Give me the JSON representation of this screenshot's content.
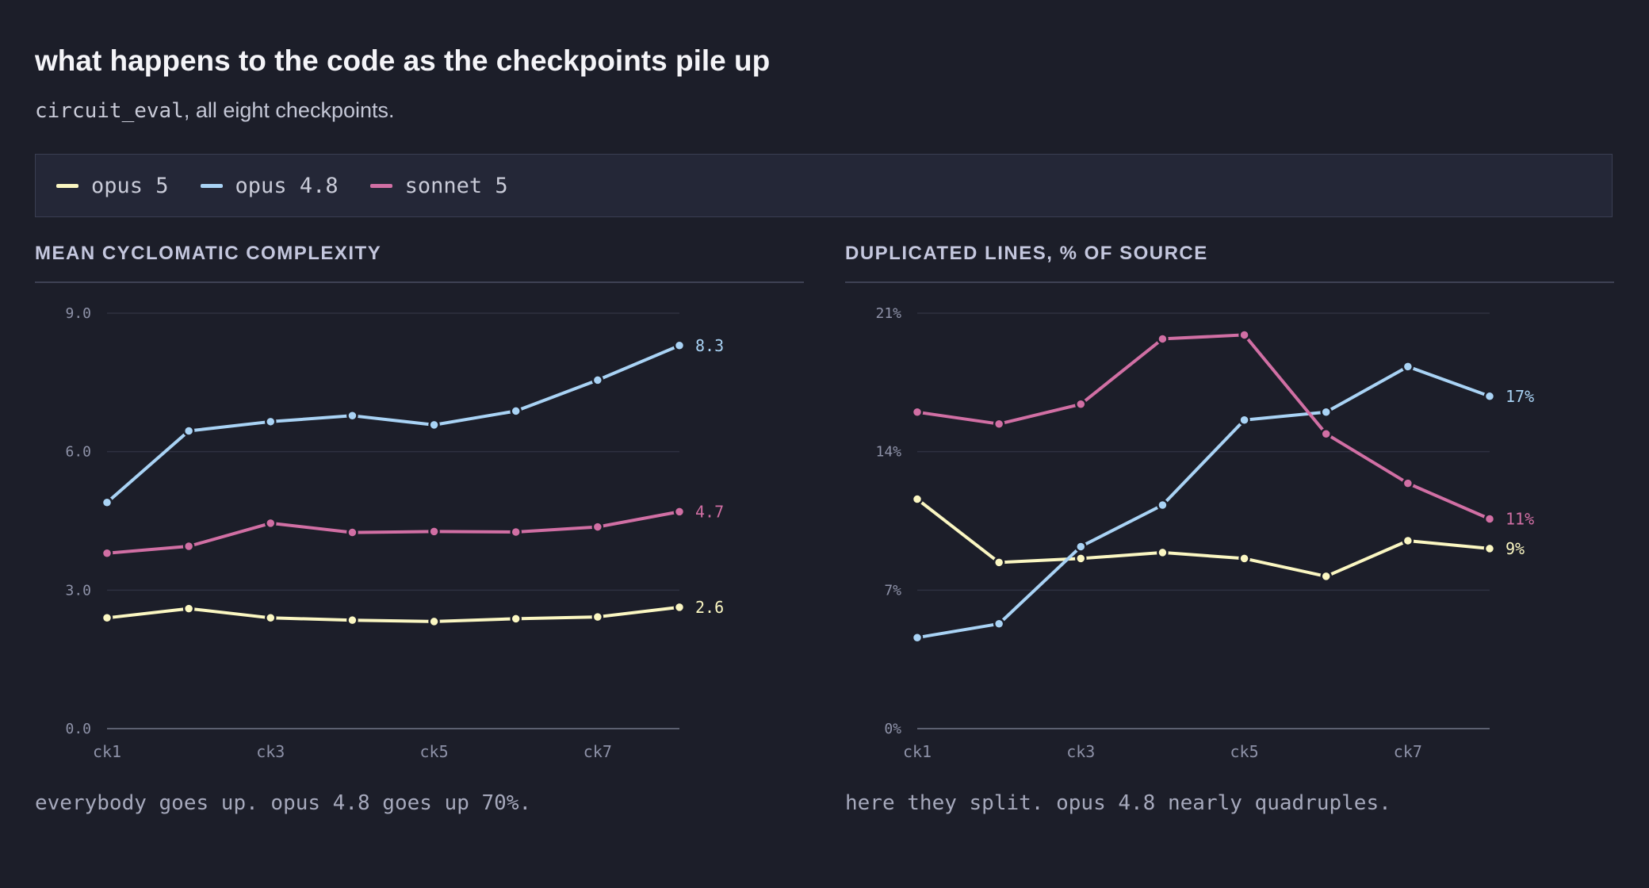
{
  "header": {
    "title": "what happens to the code as the checkpoints pile up",
    "subtitle_code": "circuit_eval",
    "subtitle_rest": ", all eight checkpoints."
  },
  "legend": [
    {
      "name": "opus 5",
      "color": "#fbf7c2"
    },
    {
      "name": "opus 4.8",
      "color": "#a9d3f5"
    },
    {
      "name": "sonnet 5",
      "color": "#d16fa4"
    }
  ],
  "colors": {
    "background": "#1c1e29",
    "grid": "#2e3140",
    "axis": "#5c6070",
    "tick_text": "#8e92a8"
  },
  "chart_data": [
    {
      "type": "line",
      "title": "MEAN CYCLOMATIC COMPLEXITY",
      "caption": "everybody goes up. opus 4.8 goes up 70%.",
      "categories": [
        "ck1",
        "ck2",
        "ck3",
        "ck4",
        "ck5",
        "ck6",
        "ck7",
        "ck8"
      ],
      "x_tick_labels": [
        "ck1",
        "",
        "ck3",
        "",
        "ck5",
        "",
        "ck7",
        ""
      ],
      "ylim": [
        0,
        9
      ],
      "y_ticks": [
        0,
        3,
        6,
        9
      ],
      "y_tick_labels": [
        "0.0",
        "3.0",
        "6.0",
        "9.0"
      ],
      "series": [
        {
          "name": "opus 5",
          "color": "#fbf7c2",
          "values": [
            2.4,
            2.6,
            2.4,
            2.35,
            2.32,
            2.38,
            2.42,
            2.63
          ],
          "end_label": "2.6"
        },
        {
          "name": "opus 4.8",
          "color": "#a9d3f5",
          "values": [
            4.9,
            6.45,
            6.65,
            6.78,
            6.58,
            6.88,
            7.55,
            8.3
          ],
          "end_label": "8.3"
        },
        {
          "name": "sonnet 5",
          "color": "#d16fa4",
          "values": [
            3.8,
            3.95,
            4.45,
            4.25,
            4.27,
            4.26,
            4.37,
            4.7
          ],
          "end_label": "4.7"
        }
      ]
    },
    {
      "type": "line",
      "title": "DUPLICATED LINES, % OF SOURCE",
      "caption": "here they split. opus 4.8 nearly quadruples.",
      "categories": [
        "ck1",
        "ck2",
        "ck3",
        "ck4",
        "ck5",
        "ck6",
        "ck7",
        "ck8"
      ],
      "x_tick_labels": [
        "ck1",
        "",
        "ck3",
        "",
        "ck5",
        "",
        "ck7",
        ""
      ],
      "ylim": [
        0,
        21
      ],
      "y_ticks": [
        0,
        7,
        14,
        21
      ],
      "y_tick_labels": [
        "0%",
        "7%",
        "14%",
        "21%"
      ],
      "series": [
        {
          "name": "opus 5",
          "color": "#fbf7c2",
          "values": [
            11.6,
            8.4,
            8.6,
            8.9,
            8.6,
            7.7,
            9.5,
            9.1
          ],
          "end_label": "9%"
        },
        {
          "name": "opus 4.8",
          "color": "#a9d3f5",
          "values": [
            4.6,
            5.3,
            9.2,
            11.3,
            15.6,
            16.0,
            18.3,
            16.8
          ],
          "end_label": "17%"
        },
        {
          "name": "sonnet 5",
          "color": "#d16fa4",
          "values": [
            16.0,
            15.4,
            16.4,
            19.7,
            19.9,
            14.9,
            12.4,
            10.6
          ],
          "end_label": "11%"
        }
      ]
    }
  ]
}
